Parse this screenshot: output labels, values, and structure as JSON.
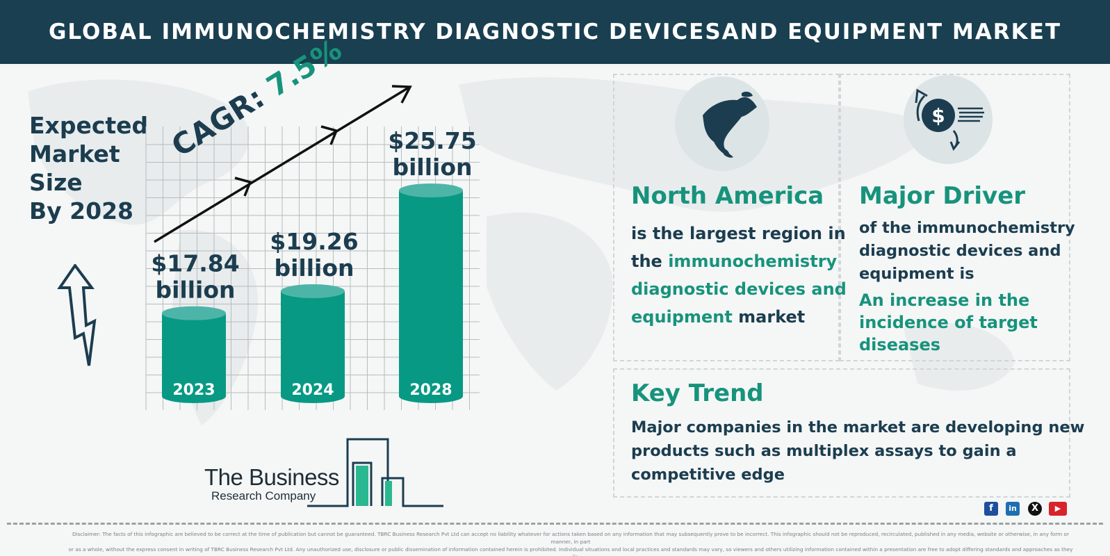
{
  "header": {
    "title": "GLOBAL IMMUNOCHEMISTRY DIAGNOSTIC DEVICESAND EQUIPMENT MARKET"
  },
  "expected": {
    "line1": "Expected",
    "line2": "Market",
    "line3": "Size",
    "line4": "By 2028"
  },
  "cagr": {
    "label": "CAGR:",
    "value": "7.5%"
  },
  "chart_data": {
    "type": "bar",
    "categories": [
      "2023",
      "2024",
      "2028"
    ],
    "values": [
      17.84,
      19.26,
      25.75
    ],
    "value_labels": [
      "$17.84",
      "$19.26",
      "$25.75"
    ],
    "unit_label": "billion",
    "bar_color": "#079984",
    "bar_top_color": "#4db5a8",
    "grid": true
  },
  "logo": {
    "name": "The Business",
    "sub": "Research Company"
  },
  "north_america": {
    "icon": "north-america-map-icon",
    "title": "North America",
    "line1": "is the largest region in",
    "line2_prefix": "the ",
    "line2_highlight": "immunochemistry",
    "line3_highlight": "diagnostic devices and",
    "line4_highlight": "equipment",
    "line4_suffix": " market"
  },
  "major_driver": {
    "icon": "dollar-exchange-icon",
    "title": "Major Driver",
    "line1": "of the immunochemistry",
    "line2": "diagnostic devices and",
    "line3": "equipment is",
    "highlight1": "An increase in the",
    "highlight2": "incidence of target",
    "highlight3": "diseases"
  },
  "key_trend": {
    "title": "Key Trend",
    "line1": "Major companies in the market are developing new",
    "line2": "products such as multiplex assays to gain a",
    "line3": "competitive edge"
  },
  "social": {
    "facebook": "f",
    "linkedin": "in",
    "x": "X",
    "youtube": "▶"
  },
  "colors": {
    "header": "#193f50",
    "accent": "#17937c",
    "text": "#1b3d4f"
  },
  "disclaimer": {
    "line1": "Disclaimer: The facts of this infographic are believed to be correct at the time of publication but cannot be guaranteed. TBRC Business Research Pvt Ltd can accept no liability whatever for actions taken based on any information that may subsequently prove to be incorrect. This infographic should not be reproduced, recirculated, published in any media, website or otherwise, in any form or manner, in part",
    "line2": "or as a whole, without the express consent in writing of TBRC Business Research Pvt Ltd. Any unauthorized use, disclosure or public dissemination of information contained herein is prohibited. Individual situations and local practices and standards may vary, so viewers and others utilizing information contained within a presentation are free to adopt differing standards and approaches as they see fit."
  }
}
